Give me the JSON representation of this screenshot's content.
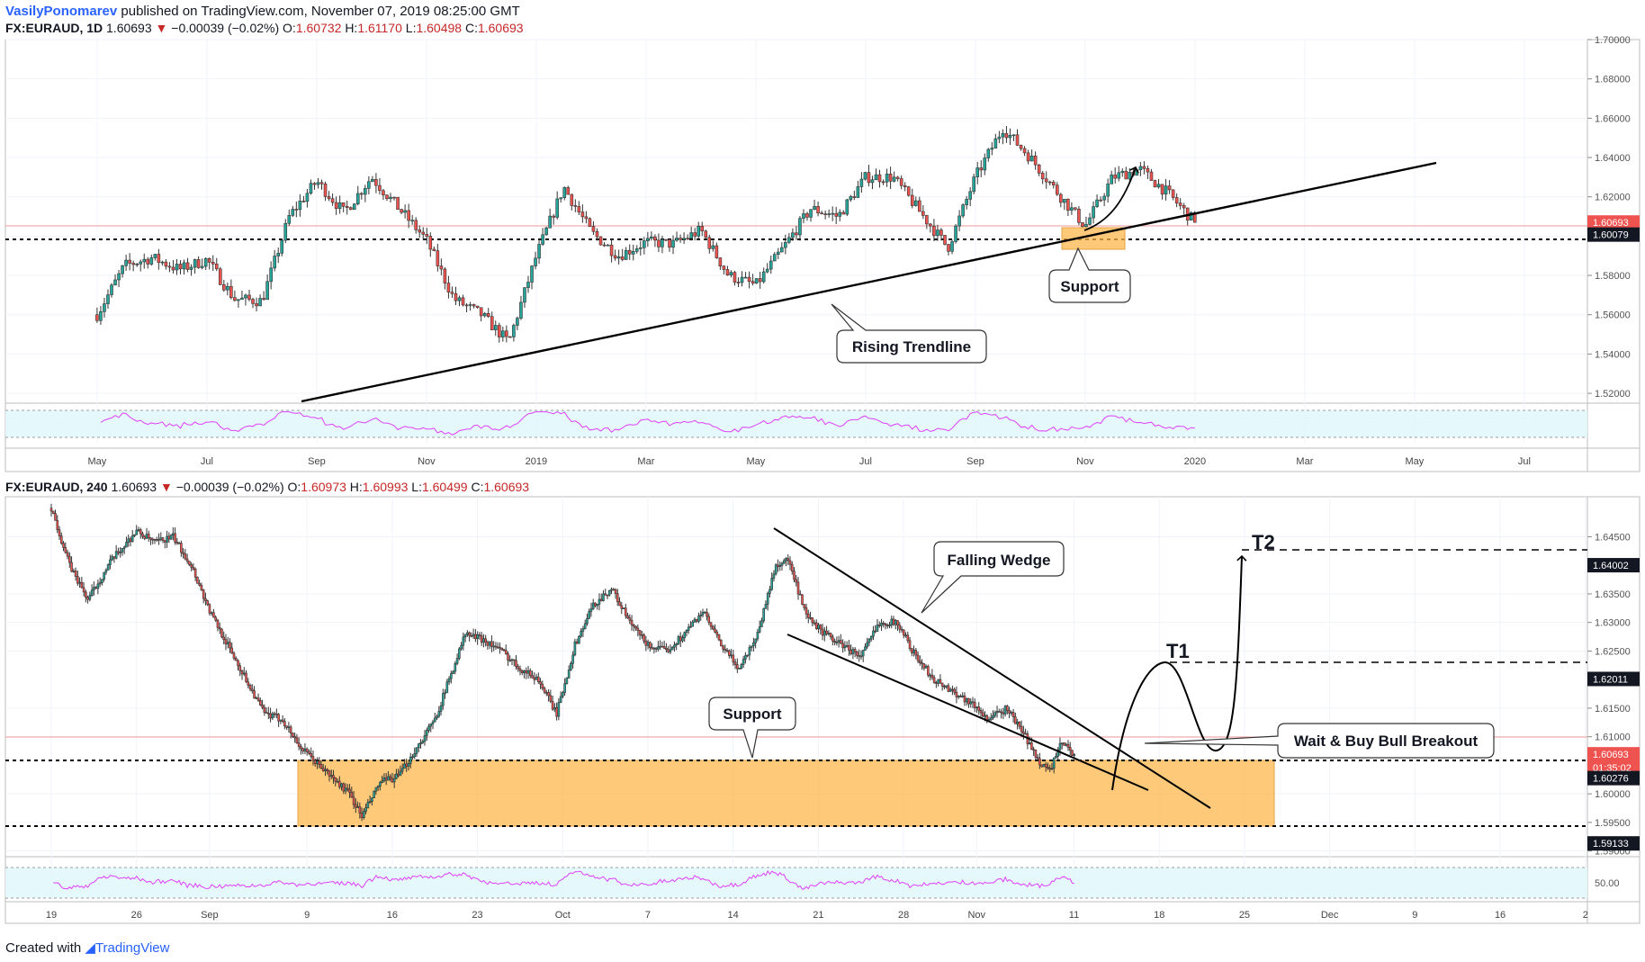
{
  "header": {
    "author": "VasilyPonomarev",
    "published": "published on TradingView.com, November 07, 2019 08:25:00 GMT"
  },
  "footer": {
    "created_with": "Created with",
    "brand": "TradingView"
  },
  "colors": {
    "up": "#26a69a",
    "down": "#ef5350",
    "zone": "#ffb74d",
    "rsi": "#e040fb"
  },
  "chart_data": [
    {
      "type": "candlestick",
      "legend": {
        "symbol": "FX:EURAUD, 1D",
        "last": "1.60693",
        "change": "−0.00039 (−0.02%)",
        "o_label": "O:",
        "o": "1.60732",
        "h_label": "H:",
        "h": "1.61170",
        "l_label": "L:",
        "l": "1.60498",
        "c_label": "C:",
        "c": "1.60693"
      },
      "ylim": [
        1.515,
        1.7
      ],
      "y_ticks": [
        "1.70000",
        "1.68000",
        "1.66000",
        "1.64000",
        "1.62000",
        "1.60000",
        "1.58000",
        "1.56000",
        "1.54000",
        "1.52000"
      ],
      "y_tick_values": [
        1.7,
        1.68,
        1.66,
        1.64,
        1.62,
        1.6,
        1.58,
        1.56,
        1.54,
        1.52
      ],
      "x_ticks": [
        "May",
        "Jul",
        "Sep",
        "Nov",
        "2019",
        "Mar",
        "May",
        "Jul",
        "Sep",
        "Nov",
        "2020",
        "Mar",
        "May",
        "Jul"
      ],
      "x_tick_months": [
        4,
        6,
        8,
        10,
        12,
        14,
        16,
        18,
        20,
        22,
        24,
        26,
        28,
        30
      ],
      "price_labels": [
        {
          "text": "1.60693",
          "value": 1.60693,
          "style": "red"
        },
        {
          "text": "1.60079",
          "value": 1.60079,
          "style": "black"
        }
      ],
      "anchors": [
        [
          0,
          1.578
        ],
        [
          0.5,
          1.605
        ],
        [
          1.0,
          1.592
        ],
        [
          1.5,
          1.607
        ],
        [
          2.0,
          1.594
        ],
        [
          2.5,
          1.565
        ],
        [
          3.0,
          1.545
        ],
        [
          3.4,
          1.532
        ],
        [
          4.0,
          1.56
        ],
        [
          4.5,
          1.585
        ],
        [
          5.0,
          1.589
        ],
        [
          5.5,
          1.583
        ],
        [
          6.0,
          1.588
        ],
        [
          6.5,
          1.568
        ],
        [
          7.0,
          1.567
        ],
        [
          7.5,
          1.61
        ],
        [
          8.0,
          1.628
        ],
        [
          8.5,
          1.612
        ],
        [
          9.0,
          1.63
        ],
        [
          9.5,
          1.614
        ],
        [
          10.0,
          1.598
        ],
        [
          10.5,
          1.568
        ],
        [
          11.0,
          1.56
        ],
        [
          11.5,
          1.546
        ],
        [
          12.0,
          1.59
        ],
        [
          12.5,
          1.625
        ],
        [
          13.0,
          1.602
        ],
        [
          13.5,
          1.59
        ],
        [
          14.0,
          1.597
        ],
        [
          14.5,
          1.596
        ],
        [
          15.0,
          1.603
        ],
        [
          15.5,
          1.58
        ],
        [
          16.0,
          1.575
        ],
        [
          16.5,
          1.594
        ],
        [
          17.0,
          1.614
        ],
        [
          17.5,
          1.61
        ],
        [
          18.0,
          1.63
        ],
        [
          18.5,
          1.63
        ],
        [
          19.0,
          1.612
        ],
        [
          19.5,
          1.594
        ],
        [
          20.0,
          1.63
        ],
        [
          20.5,
          1.655
        ],
        [
          21.0,
          1.64
        ],
        [
          21.5,
          1.622
        ],
        [
          22.0,
          1.605
        ],
        [
          22.5,
          1.63
        ],
        [
          23.0,
          1.634
        ],
        [
          23.5,
          1.622
        ],
        [
          24.0,
          1.607
        ]
      ],
      "rsi": {
        "ylim": [
          0,
          100
        ],
        "levels": [
          70,
          30
        ]
      },
      "annotations": {
        "support_label": "Support",
        "trendline_label": "Rising Trendline"
      }
    },
    {
      "type": "candlestick",
      "legend": {
        "symbol": "FX:EURAUD, 240",
        "last": "1.60693",
        "change": "−0.00039 (−0.02%)",
        "o_label": "O:",
        "o": "1.60973",
        "h_label": "H:",
        "h": "1.60993",
        "l_label": "L:",
        "l": "1.60499",
        "c_label": "C:",
        "c": "1.60693"
      },
      "ylim": [
        1.589,
        1.652
      ],
      "y_ticks": [
        "1.64500",
        "1.63500",
        "1.63000",
        "1.62500",
        "1.61500",
        "1.61000",
        "1.60000",
        "1.59500",
        "1.59000"
      ],
      "y_tick_values": [
        1.645,
        1.635,
        1.63,
        1.625,
        1.615,
        1.61,
        1.6,
        1.595,
        1.59
      ],
      "x_ticks": [
        "19",
        "26",
        "Sep",
        "9",
        "16",
        "23",
        "Oct",
        "7",
        "14",
        "21",
        "28",
        "Nov",
        "11",
        "18",
        "25",
        "Dec",
        "9",
        "16",
        "2"
      ],
      "x_tick_days": [
        0,
        7,
        13,
        21,
        28,
        35,
        42,
        49,
        56,
        63,
        70,
        76,
        84,
        91,
        98,
        105,
        112,
        119,
        126
      ],
      "price_labels": [
        {
          "text": "1.64002",
          "value": 1.64002,
          "style": "black"
        },
        {
          "text": "1.62011",
          "value": 1.62011,
          "style": "black"
        },
        {
          "text": "1.60693",
          "value": 1.60693,
          "style": "red"
        },
        {
          "text": "01:35:02",
          "value": 1.6046,
          "style": "red"
        },
        {
          "text": "1.60276",
          "value": 1.60276,
          "style": "black"
        },
        {
          "text": "1.59133",
          "value": 1.59133,
          "style": "black"
        }
      ],
      "anchors": [
        [
          0,
          1.65
        ],
        [
          1.5,
          1.64
        ],
        [
          3,
          1.634
        ],
        [
          5,
          1.641
        ],
        [
          7,
          1.646
        ],
        [
          8.5,
          1.644
        ],
        [
          10,
          1.645
        ],
        [
          11.5,
          1.64
        ],
        [
          13,
          1.632
        ],
        [
          14.5,
          1.626
        ],
        [
          16,
          1.62
        ],
        [
          17.5,
          1.614
        ],
        [
          19,
          1.613
        ],
        [
          20.5,
          1.608
        ],
        [
          22,
          1.605
        ],
        [
          23,
          1.603
        ],
        [
          24.5,
          1.6
        ],
        [
          25.5,
          1.596
        ],
        [
          27,
          1.602
        ],
        [
          28.5,
          1.603
        ],
        [
          30,
          1.608
        ],
        [
          31.5,
          1.613
        ],
        [
          32.5,
          1.619
        ],
        [
          34,
          1.628
        ],
        [
          35.5,
          1.627
        ],
        [
          37,
          1.625
        ],
        [
          38.5,
          1.622
        ],
        [
          40,
          1.62
        ],
        [
          41.5,
          1.614
        ],
        [
          43,
          1.626
        ],
        [
          44.5,
          1.633
        ],
        [
          46,
          1.636
        ],
        [
          47.5,
          1.63
        ],
        [
          49,
          1.626
        ],
        [
          50.5,
          1.625
        ],
        [
          52,
          1.628
        ],
        [
          53.5,
          1.632
        ],
        [
          55,
          1.626
        ],
        [
          56.5,
          1.622
        ],
        [
          58,
          1.628
        ],
        [
          59.5,
          1.64
        ],
        [
          60.5,
          1.641
        ],
        [
          62,
          1.631
        ],
        [
          63.5,
          1.628
        ],
        [
          65,
          1.626
        ],
        [
          66.5,
          1.624
        ],
        [
          68,
          1.63
        ],
        [
          69.5,
          1.63
        ],
        [
          71,
          1.624
        ],
        [
          72.5,
          1.62
        ],
        [
          74,
          1.618
        ],
        [
          75.5,
          1.616
        ],
        [
          77,
          1.613
        ],
        [
          78.5,
          1.615
        ],
        [
          80,
          1.61
        ],
        [
          81,
          1.606
        ],
        [
          82,
          1.604
        ],
        [
          83,
          1.609
        ],
        [
          84,
          1.6069
        ]
      ],
      "rsi": {
        "ylim": [
          0,
          100
        ],
        "levels": [
          70,
          30
        ],
        "tick_label": "50.00"
      },
      "annotations": {
        "falling_wedge_label": "Falling Wedge",
        "support_label": "Support",
        "breakout_label": "Wait & Buy Bull Breakout",
        "t1_label": "T1",
        "t2_label": "T2"
      }
    }
  ]
}
